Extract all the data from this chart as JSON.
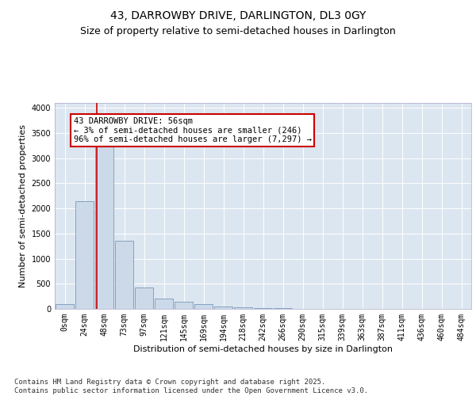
{
  "title": "43, DARROWBY DRIVE, DARLINGTON, DL3 0GY",
  "subtitle": "Size of property relative to semi-detached houses in Darlington",
  "xlabel": "Distribution of semi-detached houses by size in Darlington",
  "ylabel": "Number of semi-detached properties",
  "bar_labels": [
    "0sqm",
    "24sqm",
    "48sqm",
    "73sqm",
    "97sqm",
    "121sqm",
    "145sqm",
    "169sqm",
    "194sqm",
    "218sqm",
    "242sqm",
    "266sqm",
    "290sqm",
    "315sqm",
    "339sqm",
    "363sqm",
    "387sqm",
    "411sqm",
    "436sqm",
    "460sqm",
    "484sqm"
  ],
  "bar_values": [
    100,
    2150,
    3250,
    1350,
    420,
    200,
    140,
    90,
    55,
    30,
    15,
    10,
    5,
    2,
    1,
    1,
    0,
    0,
    0,
    0,
    0
  ],
  "bar_color": "#ccd9e8",
  "bar_edge_color": "#7799bb",
  "vline_pos": 1.62,
  "annotation_text": "43 DARROWBY DRIVE: 56sqm\n← 3% of semi-detached houses are smaller (246)\n96% of semi-detached houses are larger (7,297) →",
  "annotation_box_color": "#ffffff",
  "annotation_box_edge": "#cc0000",
  "annotation_text_color": "#000000",
  "vline_color": "#cc0000",
  "ylim": [
    0,
    4100
  ],
  "yticks": [
    0,
    500,
    1000,
    1500,
    2000,
    2500,
    3000,
    3500,
    4000
  ],
  "bg_color": "#dce6f0",
  "footer": "Contains HM Land Registry data © Crown copyright and database right 2025.\nContains public sector information licensed under the Open Government Licence v3.0.",
  "title_fontsize": 10,
  "subtitle_fontsize": 9,
  "axis_label_fontsize": 8,
  "tick_fontsize": 7,
  "annotation_fontsize": 7.5,
  "footer_fontsize": 6.5
}
